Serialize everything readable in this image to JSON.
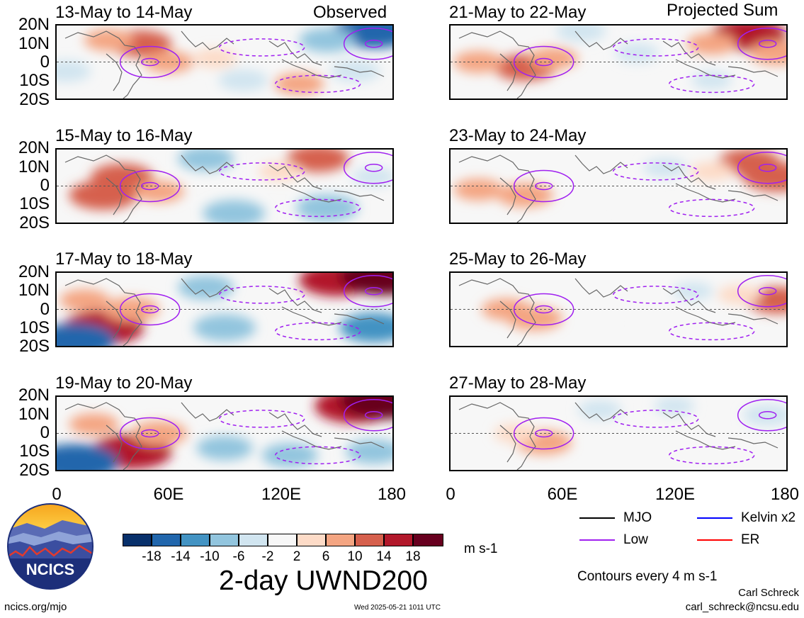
{
  "header": {
    "left_label": "Observed",
    "right_label": "Projected Sum"
  },
  "panels": {
    "left": [
      "13-May to 14-May",
      "15-May to 16-May",
      "17-May to 18-May",
      "19-May to 20-May"
    ],
    "right": [
      "21-May to 22-May",
      "23-May to 24-May",
      "25-May to 26-May",
      "27-May to 28-May"
    ]
  },
  "axes": {
    "lat_ticks": [
      "20N",
      "10N",
      "0",
      "10S",
      "20S"
    ],
    "lon_ticks": [
      "0",
      "60E",
      "120E",
      "180"
    ]
  },
  "colorbar": {
    "labels": [
      "-18",
      "-14",
      "-10",
      "-6",
      "-2",
      "2",
      "6",
      "10",
      "14",
      "18"
    ],
    "colors": [
      "#08306b",
      "#2166ac",
      "#4393c3",
      "#92c5de",
      "#d1e5f0",
      "#f7f7f7",
      "#fddbc7",
      "#f4a582",
      "#d6604d",
      "#b2182b",
      "#67001f"
    ],
    "units": "m s-1"
  },
  "legend": {
    "mjo": {
      "label": "MJO",
      "color": "#000000"
    },
    "kelvin": {
      "label": "Kelvin x2",
      "color": "#0000ff"
    },
    "low": {
      "label": "Low",
      "color": "#a020f0"
    },
    "er": {
      "label": "ER",
      "color": "#ff0000"
    },
    "contours_note": "Contours every 4 m s-1"
  },
  "title": "2-day UWND200",
  "logo": {
    "text": "NCICS"
  },
  "footer": {
    "url": "ncics.org/mjo",
    "timestamp": "Wed 2025-05-21 1011 UTC",
    "author": "Carl Schreck",
    "email": "carl_schreck@ncsu.edu"
  },
  "chart_data": {
    "type": "heatmap",
    "variable": "2-day UWND200",
    "units": "m s-1",
    "x_range": [
      0,
      180
    ],
    "y_range": [
      -20,
      20
    ],
    "levels": [
      -18,
      -14,
      -10,
      -6,
      -2,
      2,
      6,
      10,
      14,
      18
    ],
    "panels": [
      {
        "period": "13-May to 14-May",
        "label": "Observed",
        "blobs": [
          {
            "lon": 45,
            "lat": 10,
            "value": 10
          },
          {
            "lon": 60,
            "lat": 0,
            "value": 6
          },
          {
            "lon": 85,
            "lat": 2,
            "value": 4
          },
          {
            "lon": 28,
            "lat": 12,
            "value": 6
          },
          {
            "lon": 170,
            "lat": 17,
            "value": -16
          },
          {
            "lon": 145,
            "lat": 12,
            "value": -8
          },
          {
            "lon": 160,
            "lat": -5,
            "value": -6
          },
          {
            "lon": 100,
            "lat": -10,
            "value": -6
          },
          {
            "lon": 130,
            "lat": -12,
            "value": 6
          },
          {
            "lon": 5,
            "lat": -5,
            "value": -6
          }
        ]
      },
      {
        "period": "15-May to 16-May",
        "blobs": [
          {
            "lon": 35,
            "lat": 5,
            "value": 10
          },
          {
            "lon": 25,
            "lat": -5,
            "value": 12
          },
          {
            "lon": 55,
            "lat": -3,
            "value": 6
          },
          {
            "lon": 140,
            "lat": 15,
            "value": 10
          },
          {
            "lon": 120,
            "lat": 8,
            "value": 4
          },
          {
            "lon": 80,
            "lat": 15,
            "value": -8
          },
          {
            "lon": 95,
            "lat": -15,
            "value": -10
          },
          {
            "lon": 145,
            "lat": -12,
            "value": -10
          },
          {
            "lon": 170,
            "lat": 5,
            "value": -4
          }
        ]
      },
      {
        "period": "17-May to 18-May",
        "blobs": [
          {
            "lon": 25,
            "lat": -10,
            "value": 16
          },
          {
            "lon": 40,
            "lat": 0,
            "value": 8
          },
          {
            "lon": 15,
            "lat": 5,
            "value": 6
          },
          {
            "lon": 150,
            "lat": 16,
            "value": 14
          },
          {
            "lon": 175,
            "lat": 18,
            "value": 18
          },
          {
            "lon": 10,
            "lat": -17,
            "value": -16
          },
          {
            "lon": 80,
            "lat": 12,
            "value": -8
          },
          {
            "lon": 90,
            "lat": -10,
            "value": -10
          },
          {
            "lon": 170,
            "lat": -10,
            "value": -12
          }
        ]
      },
      {
        "period": "19-May to 20-May",
        "blobs": [
          {
            "lon": 40,
            "lat": -10,
            "value": 16
          },
          {
            "lon": 55,
            "lat": 0,
            "value": 8
          },
          {
            "lon": 20,
            "lat": 5,
            "value": 6
          },
          {
            "lon": 160,
            "lat": 15,
            "value": 16
          },
          {
            "lon": 175,
            "lat": 18,
            "value": 18
          },
          {
            "lon": 10,
            "lat": -16,
            "value": -18
          },
          {
            "lon": 90,
            "lat": -8,
            "value": -8
          },
          {
            "lon": 125,
            "lat": -12,
            "value": -8
          },
          {
            "lon": 170,
            "lat": -10,
            "value": -8
          }
        ]
      },
      {
        "period": "21-May to 22-May",
        "label": "Projected Sum",
        "blobs": [
          {
            "lon": 40,
            "lat": -3,
            "value": 10
          },
          {
            "lon": 15,
            "lat": 0,
            "value": 6
          },
          {
            "lon": 55,
            "lat": 2,
            "value": 6
          },
          {
            "lon": 160,
            "lat": 15,
            "value": 14
          },
          {
            "lon": 140,
            "lat": 10,
            "value": 6
          },
          {
            "lon": 175,
            "lat": 5,
            "value": 8
          },
          {
            "lon": 70,
            "lat": 17,
            "value": -6
          },
          {
            "lon": 100,
            "lat": 5,
            "value": -4
          },
          {
            "lon": 140,
            "lat": -10,
            "value": -3
          }
        ]
      },
      {
        "period": "23-May to 24-May",
        "blobs": [
          {
            "lon": 40,
            "lat": -5,
            "value": 8
          },
          {
            "lon": 15,
            "lat": -2,
            "value": 6
          },
          {
            "lon": 160,
            "lat": 13,
            "value": 10
          },
          {
            "lon": 175,
            "lat": 5,
            "value": 12
          },
          {
            "lon": 140,
            "lat": 8,
            "value": 4
          },
          {
            "lon": 115,
            "lat": 10,
            "value": -4
          },
          {
            "lon": 100,
            "lat": -10,
            "value": -2
          }
        ]
      },
      {
        "period": "25-May to 26-May",
        "blobs": [
          {
            "lon": 45,
            "lat": -5,
            "value": 8
          },
          {
            "lon": 30,
            "lat": 0,
            "value": 6
          },
          {
            "lon": 175,
            "lat": 5,
            "value": 10
          },
          {
            "lon": 155,
            "lat": 8,
            "value": 4
          },
          {
            "lon": 130,
            "lat": 10,
            "value": -3
          },
          {
            "lon": 110,
            "lat": -8,
            "value": -2
          }
        ]
      },
      {
        "period": "27-May to 28-May",
        "blobs": [
          {
            "lon": 50,
            "lat": -5,
            "value": 8
          },
          {
            "lon": 35,
            "lat": 0,
            "value": 4
          },
          {
            "lon": 80,
            "lat": 13,
            "value": -4
          },
          {
            "lon": 170,
            "lat": 10,
            "value": -6
          },
          {
            "lon": 120,
            "lat": 15,
            "value": -3
          },
          {
            "lon": 150,
            "lat": -8,
            "value": -2
          }
        ]
      }
    ],
    "low_contours": [
      {
        "lon": 50,
        "lat": 0,
        "type": "solid"
      },
      {
        "lon": 170,
        "lat": 10,
        "type": "solid"
      },
      {
        "lon": 110,
        "lat": 8,
        "type": "dashed"
      },
      {
        "lon": 140,
        "lat": -12,
        "type": "dashed"
      }
    ]
  }
}
